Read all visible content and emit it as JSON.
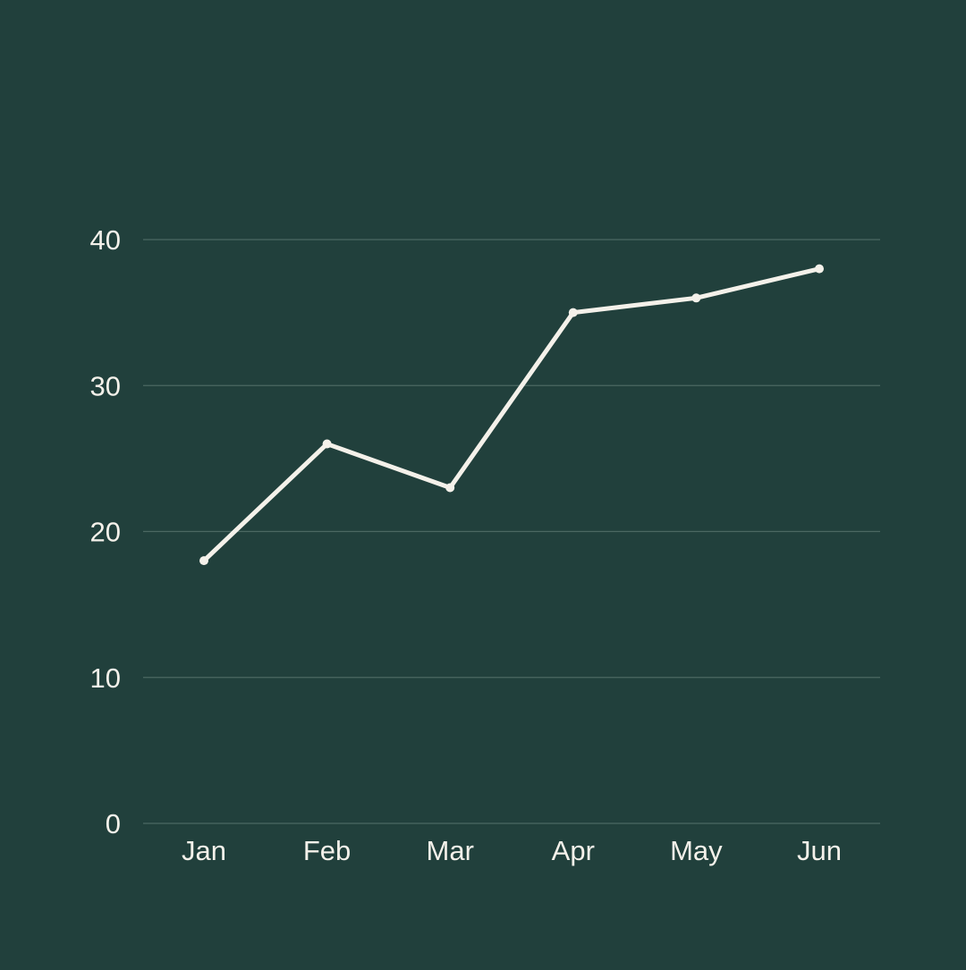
{
  "chart_data": {
    "type": "line",
    "title": "",
    "xlabel": "",
    "ylabel": "",
    "categories": [
      "Jan",
      "Feb",
      "Mar",
      "Apr",
      "May",
      "Jun"
    ],
    "series": [
      {
        "values": [
          18,
          26,
          23,
          35,
          36,
          38
        ]
      }
    ],
    "ylim": [
      0,
      40
    ],
    "yticks": [
      0,
      10,
      20,
      30,
      40
    ],
    "grid": true,
    "legend": "none",
    "colors": {
      "background": "#21403c",
      "line": "#f4f1ea",
      "grid": "#4b6862",
      "text": "#f4f1ea"
    }
  }
}
